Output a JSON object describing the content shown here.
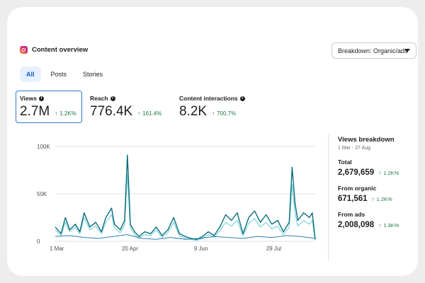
{
  "header": {
    "title": "Content overview",
    "icon": "instagram-icon"
  },
  "dropdown": {
    "label": "Breakdown: Organic/ads"
  },
  "tabs": [
    {
      "label": "All",
      "active": true
    },
    {
      "label": "Posts",
      "active": false
    },
    {
      "label": "Stories",
      "active": false
    }
  ],
  "metrics": [
    {
      "label": "Views",
      "value": "2.7M",
      "change": "1.2K%",
      "selected": true
    },
    {
      "label": "Reach",
      "value": "776.4K",
      "change": "161.4%",
      "selected": false
    },
    {
      "label": "Content interactions",
      "value": "8.2K",
      "change": "700.7%",
      "selected": false
    }
  ],
  "breakdown": {
    "title": "Views breakdown",
    "date_range": "1 Mar - 27 Aug",
    "items": [
      {
        "label": "Total",
        "value": "2,679,659",
        "change": "1.2K%"
      },
      {
        "label": "From organic",
        "value": "671,561",
        "change": "1.2K%"
      },
      {
        "label": "From ads",
        "value": "2,008,098",
        "change": "1.3K%"
      }
    ]
  },
  "colors": {
    "accent": "#2d7ad6",
    "positive": "#1e7a45",
    "total": "#0b6e7a",
    "ads": "#7fd1df",
    "organic": "#2b7fae"
  },
  "chart_data": {
    "type": "line",
    "ylabels": [
      "100K",
      "50K",
      "0"
    ],
    "yticks": [
      100000,
      50000,
      0
    ],
    "ylim": [
      0,
      100000
    ],
    "xlabels": [
      "1 Mar",
      "20 Apr",
      "9 Jun",
      "29 Jul"
    ],
    "xticks": [
      0,
      50,
      100,
      150
    ],
    "days": 180,
    "series": [
      {
        "name": "Total",
        "values": [
          [
            0,
            15000
          ],
          [
            4,
            8000
          ],
          [
            7,
            25000
          ],
          [
            10,
            12000
          ],
          [
            14,
            18000
          ],
          [
            17,
            10000
          ],
          [
            20,
            30000
          ],
          [
            24,
            15000
          ],
          [
            28,
            20000
          ],
          [
            32,
            10000
          ],
          [
            35,
            25000
          ],
          [
            39,
            35000
          ],
          [
            41,
            18000
          ],
          [
            45,
            12000
          ],
          [
            48,
            22000
          ],
          [
            50,
            91000
          ],
          [
            52,
            18000
          ],
          [
            55,
            10000
          ],
          [
            58,
            5000
          ],
          [
            62,
            10000
          ],
          [
            66,
            8000
          ],
          [
            70,
            15000
          ],
          [
            74,
            6000
          ],
          [
            78,
            12000
          ],
          [
            82,
            25000
          ],
          [
            86,
            8000
          ],
          [
            90,
            5000
          ],
          [
            94,
            3000
          ],
          [
            98,
            2000
          ],
          [
            102,
            5000
          ],
          [
            106,
            10000
          ],
          [
            110,
            6000
          ],
          [
            114,
            15000
          ],
          [
            118,
            28000
          ],
          [
            122,
            22000
          ],
          [
            126,
            30000
          ],
          [
            130,
            8000
          ],
          [
            134,
            25000
          ],
          [
            138,
            32000
          ],
          [
            142,
            20000
          ],
          [
            146,
            28000
          ],
          [
            150,
            18000
          ],
          [
            154,
            22000
          ],
          [
            158,
            10000
          ],
          [
            162,
            20000
          ],
          [
            164,
            78000
          ],
          [
            166,
            40000
          ],
          [
            168,
            22000
          ],
          [
            172,
            30000
          ],
          [
            176,
            25000
          ],
          [
            178,
            30000
          ],
          [
            180,
            2000
          ]
        ]
      },
      {
        "name": "From ads",
        "values": [
          [
            0,
            12000
          ],
          [
            4,
            6000
          ],
          [
            7,
            20000
          ],
          [
            10,
            10000
          ],
          [
            14,
            15000
          ],
          [
            17,
            8000
          ],
          [
            20,
            25000
          ],
          [
            24,
            12000
          ],
          [
            28,
            16000
          ],
          [
            32,
            8000
          ],
          [
            35,
            20000
          ],
          [
            39,
            28000
          ],
          [
            41,
            14000
          ],
          [
            45,
            9000
          ],
          [
            48,
            17000
          ],
          [
            50,
            70000
          ],
          [
            52,
            14000
          ],
          [
            55,
            7000
          ],
          [
            58,
            3000
          ],
          [
            62,
            7000
          ],
          [
            66,
            6000
          ],
          [
            70,
            12000
          ],
          [
            74,
            4000
          ],
          [
            78,
            9000
          ],
          [
            82,
            20000
          ],
          [
            86,
            6000
          ],
          [
            90,
            3000
          ],
          [
            94,
            2000
          ],
          [
            98,
            1000
          ],
          [
            102,
            3000
          ],
          [
            106,
            7000
          ],
          [
            110,
            4000
          ],
          [
            114,
            11000
          ],
          [
            118,
            20000
          ],
          [
            122,
            16000
          ],
          [
            126,
            22000
          ],
          [
            130,
            6000
          ],
          [
            134,
            19000
          ],
          [
            138,
            24000
          ],
          [
            142,
            15000
          ],
          [
            146,
            20000
          ],
          [
            150,
            13000
          ],
          [
            154,
            16000
          ],
          [
            158,
            7000
          ],
          [
            162,
            15000
          ],
          [
            164,
            60000
          ],
          [
            166,
            30000
          ],
          [
            168,
            16000
          ],
          [
            172,
            22000
          ],
          [
            176,
            18000
          ],
          [
            178,
            22000
          ],
          [
            180,
            1000
          ]
        ]
      },
      {
        "name": "From organic",
        "values": [
          [
            0,
            5000
          ],
          [
            10,
            6000
          ],
          [
            20,
            4000
          ],
          [
            30,
            3000
          ],
          [
            40,
            5000
          ],
          [
            50,
            7000
          ],
          [
            60,
            3000
          ],
          [
            70,
            2000
          ],
          [
            80,
            4000
          ],
          [
            90,
            2000
          ],
          [
            100,
            3000
          ],
          [
            110,
            5000
          ],
          [
            120,
            4000
          ],
          [
            130,
            3000
          ],
          [
            140,
            5000
          ],
          [
            150,
            4000
          ],
          [
            160,
            6000
          ],
          [
            170,
            5000
          ],
          [
            180,
            3000
          ]
        ]
      }
    ]
  }
}
